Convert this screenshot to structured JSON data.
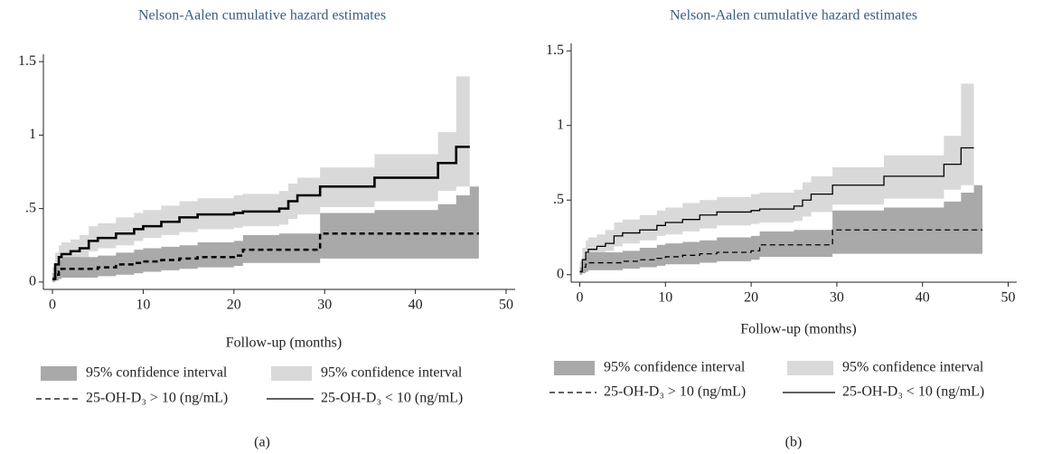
{
  "chart_data": [
    {
      "type": "step",
      "title": "Nelson-Aalen cumulative hazard estimates",
      "xlabel": "Follow-up (months)",
      "caption": "(a)",
      "x": [
        0,
        0.3,
        0.7,
        1,
        2,
        3,
        4,
        5,
        7,
        9,
        10,
        12,
        14,
        16,
        20,
        21,
        25,
        26,
        27,
        29.5,
        35.5,
        42.5,
        44.5,
        46,
        47
      ],
      "xlim": [
        -1,
        51
      ],
      "xticks": [
        0,
        10,
        20,
        30,
        40,
        50
      ],
      "ylim": [
        -0.05,
        1.55
      ],
      "yticks": [
        0,
        {
          "value": 0.5,
          "label": ".5"
        },
        1,
        1.5
      ],
      "series": [
        {
          "name": "95% confidence interval",
          "kind": "band",
          "color": "#a9a9a9",
          "values": [
            0.06,
            0.12,
            0.15,
            0.17,
            0.17,
            0.17,
            0.17,
            0.18,
            0.2,
            0.22,
            0.23,
            0.24,
            0.25,
            0.27,
            0.28,
            0.32,
            0.33,
            0.33,
            0.33,
            0.47,
            0.49,
            0.53,
            0.59,
            0.65,
            0.65
          ],
          "lower": [
            0,
            0.01,
            0.02,
            0.03,
            0.03,
            0.03,
            0.03,
            0.04,
            0.05,
            0.06,
            0.07,
            0.08,
            0.09,
            0.1,
            0.11,
            0.13,
            0.13,
            0.13,
            0.13,
            0.16,
            0.16,
            0.16,
            0.16,
            0.16,
            0.16
          ]
        },
        {
          "name": "95% confidence interval",
          "kind": "band",
          "color": "#d9d9d9",
          "values": [
            0.1,
            0.2,
            0.25,
            0.27,
            0.29,
            0.32,
            0.38,
            0.4,
            0.44,
            0.47,
            0.49,
            0.52,
            0.55,
            0.57,
            0.59,
            0.6,
            0.62,
            0.67,
            0.71,
            0.78,
            0.87,
            1.02,
            1.4,
            1.4,
            null
          ],
          "lower": [
            0,
            0.06,
            0.1,
            0.13,
            0.15,
            0.17,
            0.21,
            0.23,
            0.25,
            0.28,
            0.3,
            0.32,
            0.34,
            0.36,
            0.37,
            0.38,
            0.39,
            0.43,
            0.46,
            0.51,
            0.55,
            0.62,
            0.65,
            0.65,
            null
          ]
        },
        {
          "name": "25-OH-D₃ > 10 (ng/mL)",
          "kind": "line",
          "dashed": true,
          "color": "#000000",
          "values": [
            0.02,
            0.05,
            0.07,
            0.09,
            0.09,
            0.09,
            0.09,
            0.1,
            0.12,
            0.13,
            0.14,
            0.15,
            0.16,
            0.17,
            0.18,
            0.22,
            0.22,
            0.22,
            0.22,
            0.33,
            0.33,
            0.33,
            0.33,
            0.33,
            0.33
          ]
        },
        {
          "name": "25-OH-D₃ < 10 (ng/mL)",
          "kind": "line",
          "dashed": false,
          "color": "#000000",
          "values": [
            0.02,
            0.12,
            0.17,
            0.19,
            0.21,
            0.23,
            0.28,
            0.3,
            0.33,
            0.36,
            0.38,
            0.41,
            0.44,
            0.46,
            0.47,
            0.48,
            0.5,
            0.55,
            0.59,
            0.65,
            0.71,
            0.81,
            0.92,
            0.92,
            null
          ]
        }
      ]
    },
    {
      "type": "step",
      "title": "Nelson-Aalen cumulative hazard estimates",
      "xlabel": "Follow-up (months)",
      "caption": "(b)",
      "x": [
        0,
        0.3,
        0.7,
        1,
        2,
        3,
        4,
        5,
        7,
        9,
        10,
        12,
        14,
        16,
        20,
        21,
        25,
        26,
        27,
        29.5,
        35.5,
        42.5,
        44.5,
        46,
        47
      ],
      "xlim": [
        -1,
        51
      ],
      "xticks": [
        0,
        10,
        20,
        30,
        40,
        50
      ],
      "ylim": [
        -0.05,
        1.55
      ],
      "yticks": [
        0,
        {
          "value": 0.5,
          "label": ".5"
        },
        1,
        1.5
      ],
      "series": [
        {
          "name": "95% confidence interval",
          "kind": "band",
          "color": "#a9a9a9",
          "values": [
            0.05,
            0.11,
            0.14,
            0.15,
            0.15,
            0.15,
            0.15,
            0.16,
            0.18,
            0.2,
            0.21,
            0.22,
            0.23,
            0.25,
            0.26,
            0.29,
            0.3,
            0.3,
            0.3,
            0.43,
            0.45,
            0.49,
            0.55,
            0.6,
            0.6
          ],
          "lower": [
            0,
            0.01,
            0.02,
            0.03,
            0.03,
            0.03,
            0.03,
            0.04,
            0.05,
            0.06,
            0.07,
            0.07,
            0.08,
            0.09,
            0.1,
            0.12,
            0.12,
            0.12,
            0.12,
            0.14,
            0.14,
            0.14,
            0.14,
            0.14,
            0.14
          ]
        },
        {
          "name": "95% confidence interval",
          "kind": "band",
          "color": "#d9d9d9",
          "values": [
            0.09,
            0.18,
            0.23,
            0.25,
            0.27,
            0.3,
            0.35,
            0.37,
            0.4,
            0.43,
            0.45,
            0.48,
            0.5,
            0.52,
            0.54,
            0.55,
            0.57,
            0.62,
            0.66,
            0.72,
            0.8,
            0.93,
            1.28,
            1.28,
            null
          ],
          "lower": [
            0,
            0.05,
            0.09,
            0.12,
            0.14,
            0.16,
            0.19,
            0.21,
            0.23,
            0.26,
            0.27,
            0.29,
            0.31,
            0.33,
            0.34,
            0.35,
            0.36,
            0.39,
            0.42,
            0.47,
            0.51,
            0.57,
            0.6,
            0.6,
            null
          ]
        },
        {
          "name": "25-OH-D₃ > 10 (ng/mL)",
          "kind": "line",
          "dashed": true,
          "color": "#000000",
          "values": [
            0.02,
            0.05,
            0.07,
            0.08,
            0.08,
            0.08,
            0.08,
            0.09,
            0.1,
            0.11,
            0.12,
            0.13,
            0.14,
            0.15,
            0.16,
            0.2,
            0.2,
            0.2,
            0.2,
            0.3,
            0.3,
            0.3,
            0.3,
            0.3,
            0.3
          ]
        },
        {
          "name": "25-OH-D₃ < 10 (ng/mL)",
          "kind": "line",
          "dashed": false,
          "color": "#000000",
          "values": [
            0.02,
            0.1,
            0.15,
            0.17,
            0.19,
            0.21,
            0.26,
            0.28,
            0.3,
            0.33,
            0.35,
            0.37,
            0.4,
            0.42,
            0.43,
            0.44,
            0.46,
            0.5,
            0.54,
            0.6,
            0.66,
            0.74,
            0.85,
            0.85,
            null
          ]
        }
      ]
    }
  ]
}
